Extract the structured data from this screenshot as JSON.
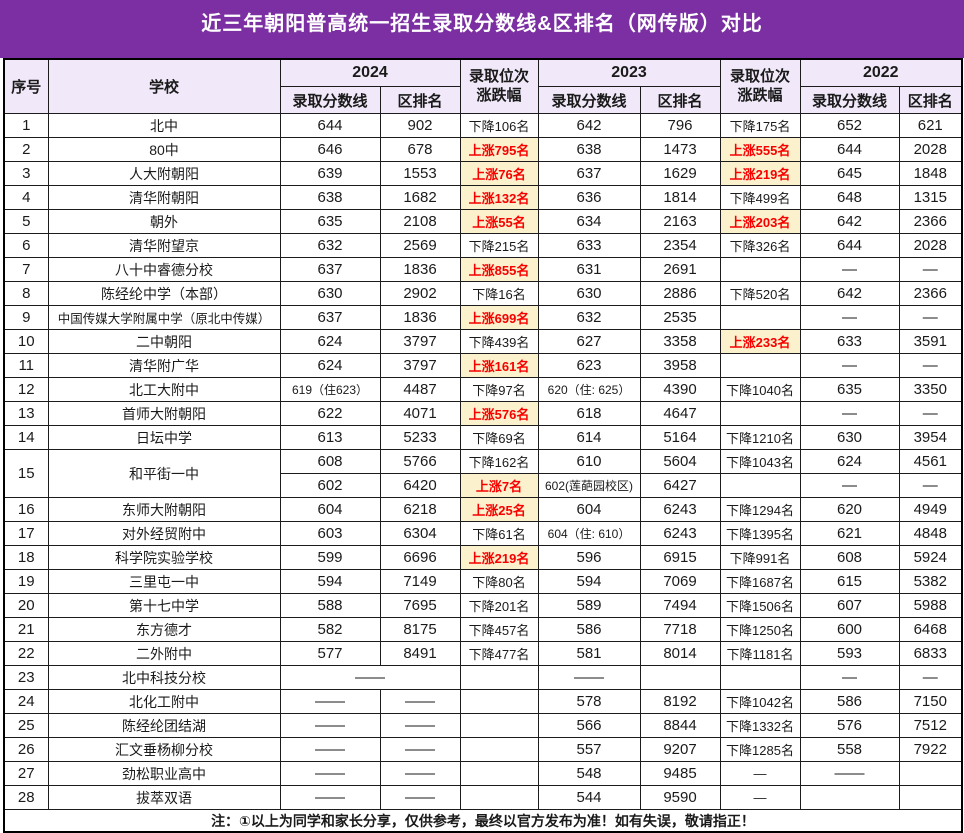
{
  "title": "近三年朝阳普高统一招生录取分数线&区排名（网传版）对比",
  "header": {
    "no": "序号",
    "school": "学校",
    "years": [
      "2024",
      "2023",
      "2022"
    ],
    "score": "录取分数线",
    "rank": "区排名",
    "change": "录取位次涨跌幅"
  },
  "note": "注：①以上为同学和家长分享，仅供参考，最终以官方发布为准！如有失误，敬请指正！",
  "colors": {
    "title_bg": "#7B2FA2",
    "header_bg": "#F1E9F9",
    "up_bg": "#FBF1CC",
    "up_text": "#F80000"
  },
  "chart_data": {
    "type": "table",
    "title": "近三年朝阳普高统一招生录取分数线&区排名（网传版）对比",
    "columns": [
      "序号",
      "学校",
      "2024 录取分数线",
      "2024 区排名",
      "录取位次涨跌幅(2024vs2023)",
      "2023 录取分数线",
      "2023 区排名",
      "录取位次涨跌幅(2023vs2022)",
      "2022 录取分数线",
      "2022 区排名"
    ],
    "rows": [
      {
        "no": "1",
        "school": "北中",
        "lines": [
          {
            "s24": "644",
            "r24": "902",
            "c24": "下降106名",
            "s23": "642",
            "r23": "796",
            "c23": "下降175名",
            "s22": "652",
            "r22": "621"
          }
        ]
      },
      {
        "no": "2",
        "school": "80中",
        "lines": [
          {
            "s24": "646",
            "r24": "678",
            "c24": "上涨795名",
            "u24": true,
            "s23": "638",
            "r23": "1473",
            "c23": "上涨555名",
            "u23": true,
            "s22": "644",
            "r22": "2028"
          }
        ]
      },
      {
        "no": "3",
        "school": "人大附朝阳",
        "lines": [
          {
            "s24": "639",
            "r24": "1553",
            "c24": "上涨76名",
            "u24": true,
            "s23": "637",
            "r23": "1629",
            "c23": "上涨219名",
            "u23": true,
            "s22": "645",
            "r22": "1848"
          }
        ]
      },
      {
        "no": "4",
        "school": "清华附朝阳",
        "lines": [
          {
            "s24": "638",
            "r24": "1682",
            "c24": "上涨132名",
            "u24": true,
            "s23": "636",
            "r23": "1814",
            "c23": "下降499名",
            "s22": "648",
            "r22": "1315"
          }
        ]
      },
      {
        "no": "5",
        "school": "朝外",
        "lines": [
          {
            "s24": "635",
            "r24": "2108",
            "c24": "上涨55名",
            "u24": true,
            "s23": "634",
            "r23": "2163",
            "c23": "上涨203名",
            "u23": true,
            "s22": "642",
            "r22": "2366"
          }
        ]
      },
      {
        "no": "6",
        "school": "清华附望京",
        "lines": [
          {
            "s24": "632",
            "r24": "2569",
            "c24": "下降215名",
            "s23": "633",
            "r23": "2354",
            "c23": "下降326名",
            "s22": "644",
            "r22": "2028"
          }
        ]
      },
      {
        "no": "7",
        "school": "八十中睿德分校",
        "lines": [
          {
            "s24": "637",
            "r24": "1836",
            "c24": "上涨855名",
            "u24": true,
            "s23": "631",
            "r23": "2691",
            "c23": "",
            "s22": "—",
            "r22": "—"
          }
        ]
      },
      {
        "no": "8",
        "school": "陈经纶中学（本部）",
        "lines": [
          {
            "s24": "630",
            "r24": "2902",
            "c24": "下降16名",
            "s23": "630",
            "r23": "2886",
            "c23": "下降520名",
            "s22": "642",
            "r22": "2366"
          }
        ]
      },
      {
        "no": "9",
        "school": "中国传媒大学附属中学（原北中传媒）",
        "lines": [
          {
            "s24": "637",
            "r24": "1836",
            "c24": "上涨699名",
            "u24": true,
            "s23": "632",
            "r23": "2535",
            "c23": "",
            "s22": "—",
            "r22": "—"
          }
        ]
      },
      {
        "no": "10",
        "school": "二中朝阳",
        "lines": [
          {
            "s24": "624",
            "r24": "3797",
            "c24": "下降439名",
            "s23": "627",
            "r23": "3358",
            "c23": "上涨233名",
            "u23": true,
            "s22": "633",
            "r22": "3591"
          }
        ]
      },
      {
        "no": "11",
        "school": "清华附广华",
        "lines": [
          {
            "s24": "624",
            "r24": "3797",
            "c24": "上涨161名",
            "u24": true,
            "s23": "623",
            "r23": "3958",
            "c23": "",
            "s22": "—",
            "r22": "—"
          }
        ]
      },
      {
        "no": "12",
        "school": "北工大附中",
        "lines": [
          {
            "s24": "619（住623）",
            "r24": "4487",
            "c24": "下降97名",
            "s23": "620（住: 625）",
            "r23": "4390",
            "c23": "下降1040名",
            "s22": "635",
            "r22": "3350"
          }
        ]
      },
      {
        "no": "13",
        "school": "首师大附朝阳",
        "lines": [
          {
            "s24": "622",
            "r24": "4071",
            "c24": "上涨576名",
            "u24": true,
            "s23": "618",
            "r23": "4647",
            "c23": "",
            "s22": "—",
            "r22": "—"
          }
        ]
      },
      {
        "no": "14",
        "school": "日坛中学",
        "lines": [
          {
            "s24": "613",
            "r24": "5233",
            "c24": "下降69名",
            "s23": "614",
            "r23": "5164",
            "c23": "下降1210名",
            "s22": "630",
            "r22": "3954"
          }
        ]
      },
      {
        "no": "15",
        "school": "和平街一中",
        "lines": [
          {
            "s24": "608",
            "r24": "5766",
            "c24": "下降162名",
            "s23": "610",
            "r23": "5604",
            "c23": "下降1043名",
            "s22": "624",
            "r22": "4561"
          },
          {
            "s24": "602",
            "r24": "6420",
            "c24": "上涨7名",
            "u24": true,
            "s23": "602(莲葩园校区)",
            "r23": "6427",
            "c23": "",
            "s22": "—",
            "r22": "—"
          }
        ]
      },
      {
        "no": "16",
        "school": "东师大附朝阳",
        "lines": [
          {
            "s24": "604",
            "r24": "6218",
            "c24": "上涨25名",
            "u24": true,
            "s23": "604",
            "r23": "6243",
            "c23": "下降1294名",
            "s22": "620",
            "r22": "4949"
          }
        ]
      },
      {
        "no": "17",
        "school": "对外经贸附中",
        "lines": [
          {
            "s24": "603",
            "r24": "6304",
            "c24": "下降61名",
            "s23": "604（住: 610）",
            "r23": "6243",
            "c23": "下降1395名",
            "s22": "621",
            "r22": "4848"
          }
        ]
      },
      {
        "no": "18",
        "school": "科学院实验学校",
        "lines": [
          {
            "s24": "599",
            "r24": "6696",
            "c24": "上涨219名",
            "u24": true,
            "s23": "596",
            "r23": "6915",
            "c23": "下降991名",
            "s22": "608",
            "r22": "5924"
          }
        ]
      },
      {
        "no": "19",
        "school": "三里屯一中",
        "lines": [
          {
            "s24": "594",
            "r24": "7149",
            "c24": "下降80名",
            "s23": "594",
            "r23": "7069",
            "c23": "下降1687名",
            "s22": "615",
            "r22": "5382"
          }
        ]
      },
      {
        "no": "20",
        "school": "第十七中学",
        "lines": [
          {
            "s24": "588",
            "r24": "7695",
            "c24": "下降201名",
            "s23": "589",
            "r23": "7494",
            "c23": "下降1506名",
            "s22": "607",
            "r22": "5988"
          }
        ]
      },
      {
        "no": "21",
        "school": "东方德才",
        "lines": [
          {
            "s24": "582",
            "r24": "8175",
            "c24": "下降457名",
            "s23": "586",
            "r23": "7718",
            "c23": "下降1250名",
            "s22": "600",
            "r22": "6468"
          }
        ]
      },
      {
        "no": "22",
        "school": "二外附中",
        "lines": [
          {
            "s24": "577",
            "r24": "8491",
            "c24": "下降477名",
            "s23": "581",
            "r23": "8014",
            "c23": "下降1181名",
            "s22": "593",
            "r22": "6833"
          }
        ]
      },
      {
        "no": "23",
        "school": "北中科技分校",
        "lines": [
          {
            "m24": true,
            "s24": "——",
            "c24": "",
            "s23": "——",
            "r23": "",
            "c23": "",
            "s22": "—",
            "r22": "—"
          }
        ]
      },
      {
        "no": "24",
        "school": "北化工附中",
        "lines": [
          {
            "s24": "——",
            "r24": "——",
            "c24": "",
            "s23": "578",
            "r23": "8192",
            "c23": "下降1042名",
            "s22": "586",
            "r22": "7150"
          }
        ]
      },
      {
        "no": "25",
        "school": "陈经纶团结湖",
        "lines": [
          {
            "s24": "——",
            "r24": "——",
            "c24": "",
            "s23": "566",
            "r23": "8844",
            "c23": "下降1332名",
            "s22": "576",
            "r22": "7512"
          }
        ]
      },
      {
        "no": "26",
        "school": "汇文垂杨柳分校",
        "lines": [
          {
            "s24": "——",
            "r24": "——",
            "c24": "",
            "s23": "557",
            "r23": "9207",
            "c23": "下降1285名",
            "s22": "558",
            "r22": "7922"
          }
        ]
      },
      {
        "no": "27",
        "school": "劲松职业高中",
        "lines": [
          {
            "s24": "——",
            "r24": "——",
            "c24": "",
            "s23": "548",
            "r23": "9485",
            "c23": "—",
            "s22": "——",
            "r22": ""
          }
        ]
      },
      {
        "no": "28",
        "school": "拔萃双语",
        "lines": [
          {
            "s24": "——",
            "r24": "——",
            "c24": "",
            "s23": "544",
            "r23": "9590",
            "c23": "—",
            "s22": "",
            "r22": ""
          }
        ]
      }
    ]
  }
}
